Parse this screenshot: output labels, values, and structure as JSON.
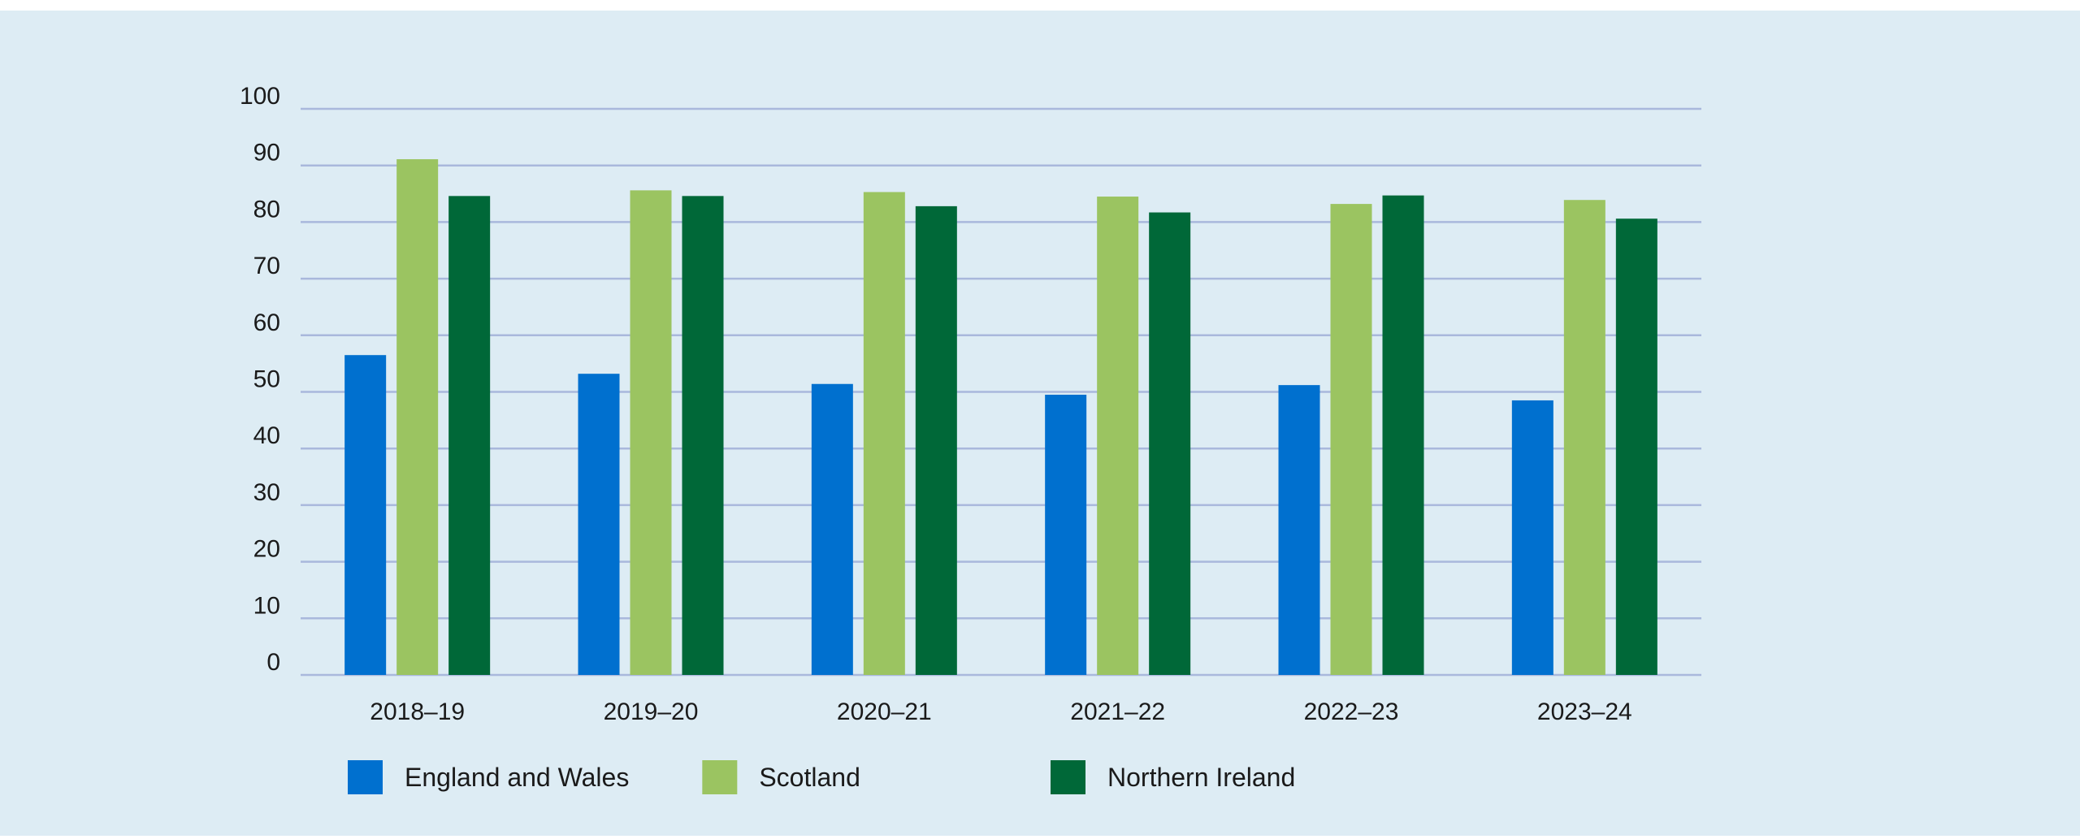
{
  "chart_data": {
    "type": "bar",
    "categories": [
      "2018–19",
      "2019–20",
      "2020–21",
      "2021–22",
      "2022–23",
      "2023–24"
    ],
    "series": [
      {
        "name": "England and Wales",
        "color": "#0070cf",
        "values": [
          56.5,
          53.2,
          51.4,
          49.5,
          51.2,
          48.5
        ]
      },
      {
        "name": "Scotland",
        "color": "#9bc461",
        "values": [
          91.1,
          85.6,
          85.3,
          84.5,
          83.2,
          83.9
        ]
      },
      {
        "name": "Northern Ireland",
        "color": "#006838",
        "values": [
          84.6,
          84.6,
          82.8,
          81.7,
          84.7,
          80.6
        ]
      }
    ],
    "yticks": [
      "0",
      "10",
      "20",
      "30",
      "40",
      "50",
      "60",
      "70",
      "80",
      "90",
      "100"
    ],
    "ylim": [
      0,
      100
    ],
    "grid": true,
    "legend": "bottom",
    "background": "#ddecf4",
    "gridline_color": "#a9b8dc"
  }
}
